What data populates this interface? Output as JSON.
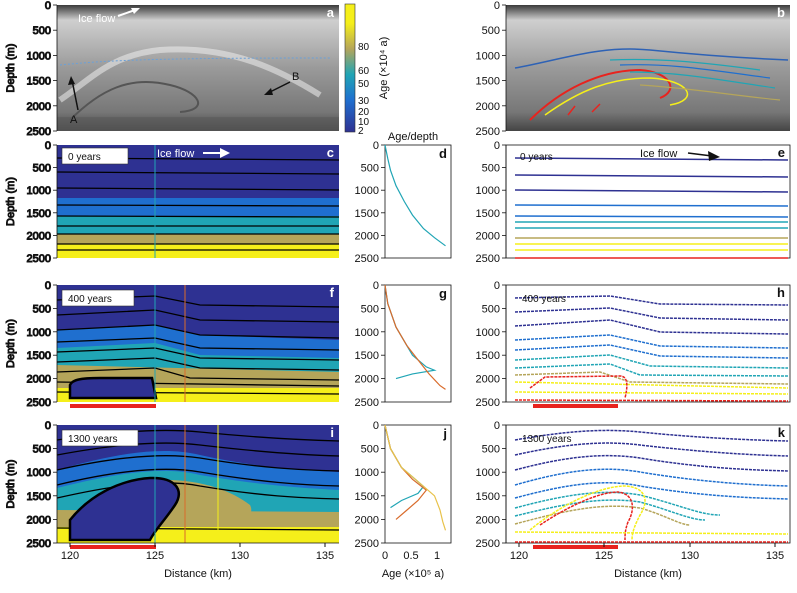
{
  "figure": {
    "panel_letters": [
      "a",
      "b",
      "c",
      "d",
      "e",
      "f",
      "g",
      "h",
      "i",
      "j",
      "k"
    ],
    "depth_label": "Depth (m)",
    "distance_label": "Distance (km)",
    "age_depth_title": "Age/depth",
    "age_axis_label": "Age (×10⁵ a)",
    "colorbar_label": "Age (×10⁴ a)",
    "colorbar_ticks": [
      "80",
      "60",
      "50",
      "30",
      "20",
      "10",
      "2"
    ],
    "depth_ticks": [
      "0",
      "500",
      "1000",
      "1500",
      "2000",
      "2500"
    ],
    "distance_ticks": [
      "120",
      "125",
      "130",
      "135"
    ],
    "age_ticks": [
      "0",
      "0.5",
      "1"
    ],
    "time_labels": [
      "0 years",
      "400 years",
      "1300 years"
    ],
    "ice_flow_label": "Ice flow",
    "radar_markers": [
      "A",
      "B"
    ],
    "colors": {
      "deep_blue": "#2e3192",
      "blue": "#1f6fcf",
      "teal": "#20a5b5",
      "olive": "#b5a55a",
      "yellow": "#f5ef1a",
      "red": "#e8231e",
      "orange": "#d96b2b"
    }
  },
  "chart_data": [
    {
      "type": "line",
      "panel": "d",
      "title": "Age/depth",
      "xlabel": "Age (×10⁵ a)",
      "ylabel": "Depth (m)",
      "xlim": [
        0,
        1.2
      ],
      "ylim": [
        2500,
        0
      ],
      "series": [
        {
          "name": "t=0",
          "x": [
            0,
            0.05,
            0.1,
            0.2,
            0.35,
            0.5,
            0.7,
            0.9,
            1.1
          ],
          "y": [
            0,
            300,
            560,
            900,
            1250,
            1550,
            1850,
            2050,
            2230
          ]
        }
      ]
    },
    {
      "type": "line",
      "panel": "g",
      "xlabel": "Age (×10⁵ a)",
      "ylabel": "Depth (m)",
      "xlim": [
        0,
        1.2
      ],
      "ylim": [
        2500,
        0
      ],
      "series": [
        {
          "name": "blue",
          "x": [
            0,
            0.05,
            0.2,
            0.5,
            0.75,
            0.9,
            0.5,
            0.2
          ],
          "y": [
            0,
            400,
            900,
            1500,
            1750,
            1820,
            1900,
            2000
          ]
        },
        {
          "name": "orange",
          "x": [
            0,
            0.05,
            0.2,
            0.4,
            0.6,
            0.8,
            1.0,
            1.1
          ],
          "y": [
            0,
            400,
            900,
            1300,
            1600,
            1900,
            2150,
            2230
          ]
        }
      ]
    },
    {
      "type": "line",
      "panel": "j",
      "xlabel": "Age (×10⁵ a)",
      "ylabel": "Depth (m)",
      "xlim": [
        0,
        1.2
      ],
      "ylim": [
        2500,
        0
      ],
      "series": [
        {
          "name": "blue",
          "x": [
            0,
            0.1,
            0.3,
            0.55,
            0.7,
            0.6,
            0.3,
            0.1
          ],
          "y": [
            0,
            500,
            900,
            1150,
            1300,
            1450,
            1600,
            1750
          ]
        },
        {
          "name": "orange",
          "x": [
            0,
            0.1,
            0.3,
            0.5,
            0.75,
            0.6,
            0.4,
            0.2
          ],
          "y": [
            0,
            500,
            900,
            1150,
            1380,
            1600,
            1800,
            2000
          ]
        },
        {
          "name": "yellow",
          "x": [
            0,
            0.1,
            0.3,
            0.6,
            0.9,
            1.0,
            1.05,
            1.1
          ],
          "y": [
            0,
            500,
            900,
            1200,
            1500,
            1800,
            2050,
            2230
          ]
        }
      ]
    }
  ]
}
